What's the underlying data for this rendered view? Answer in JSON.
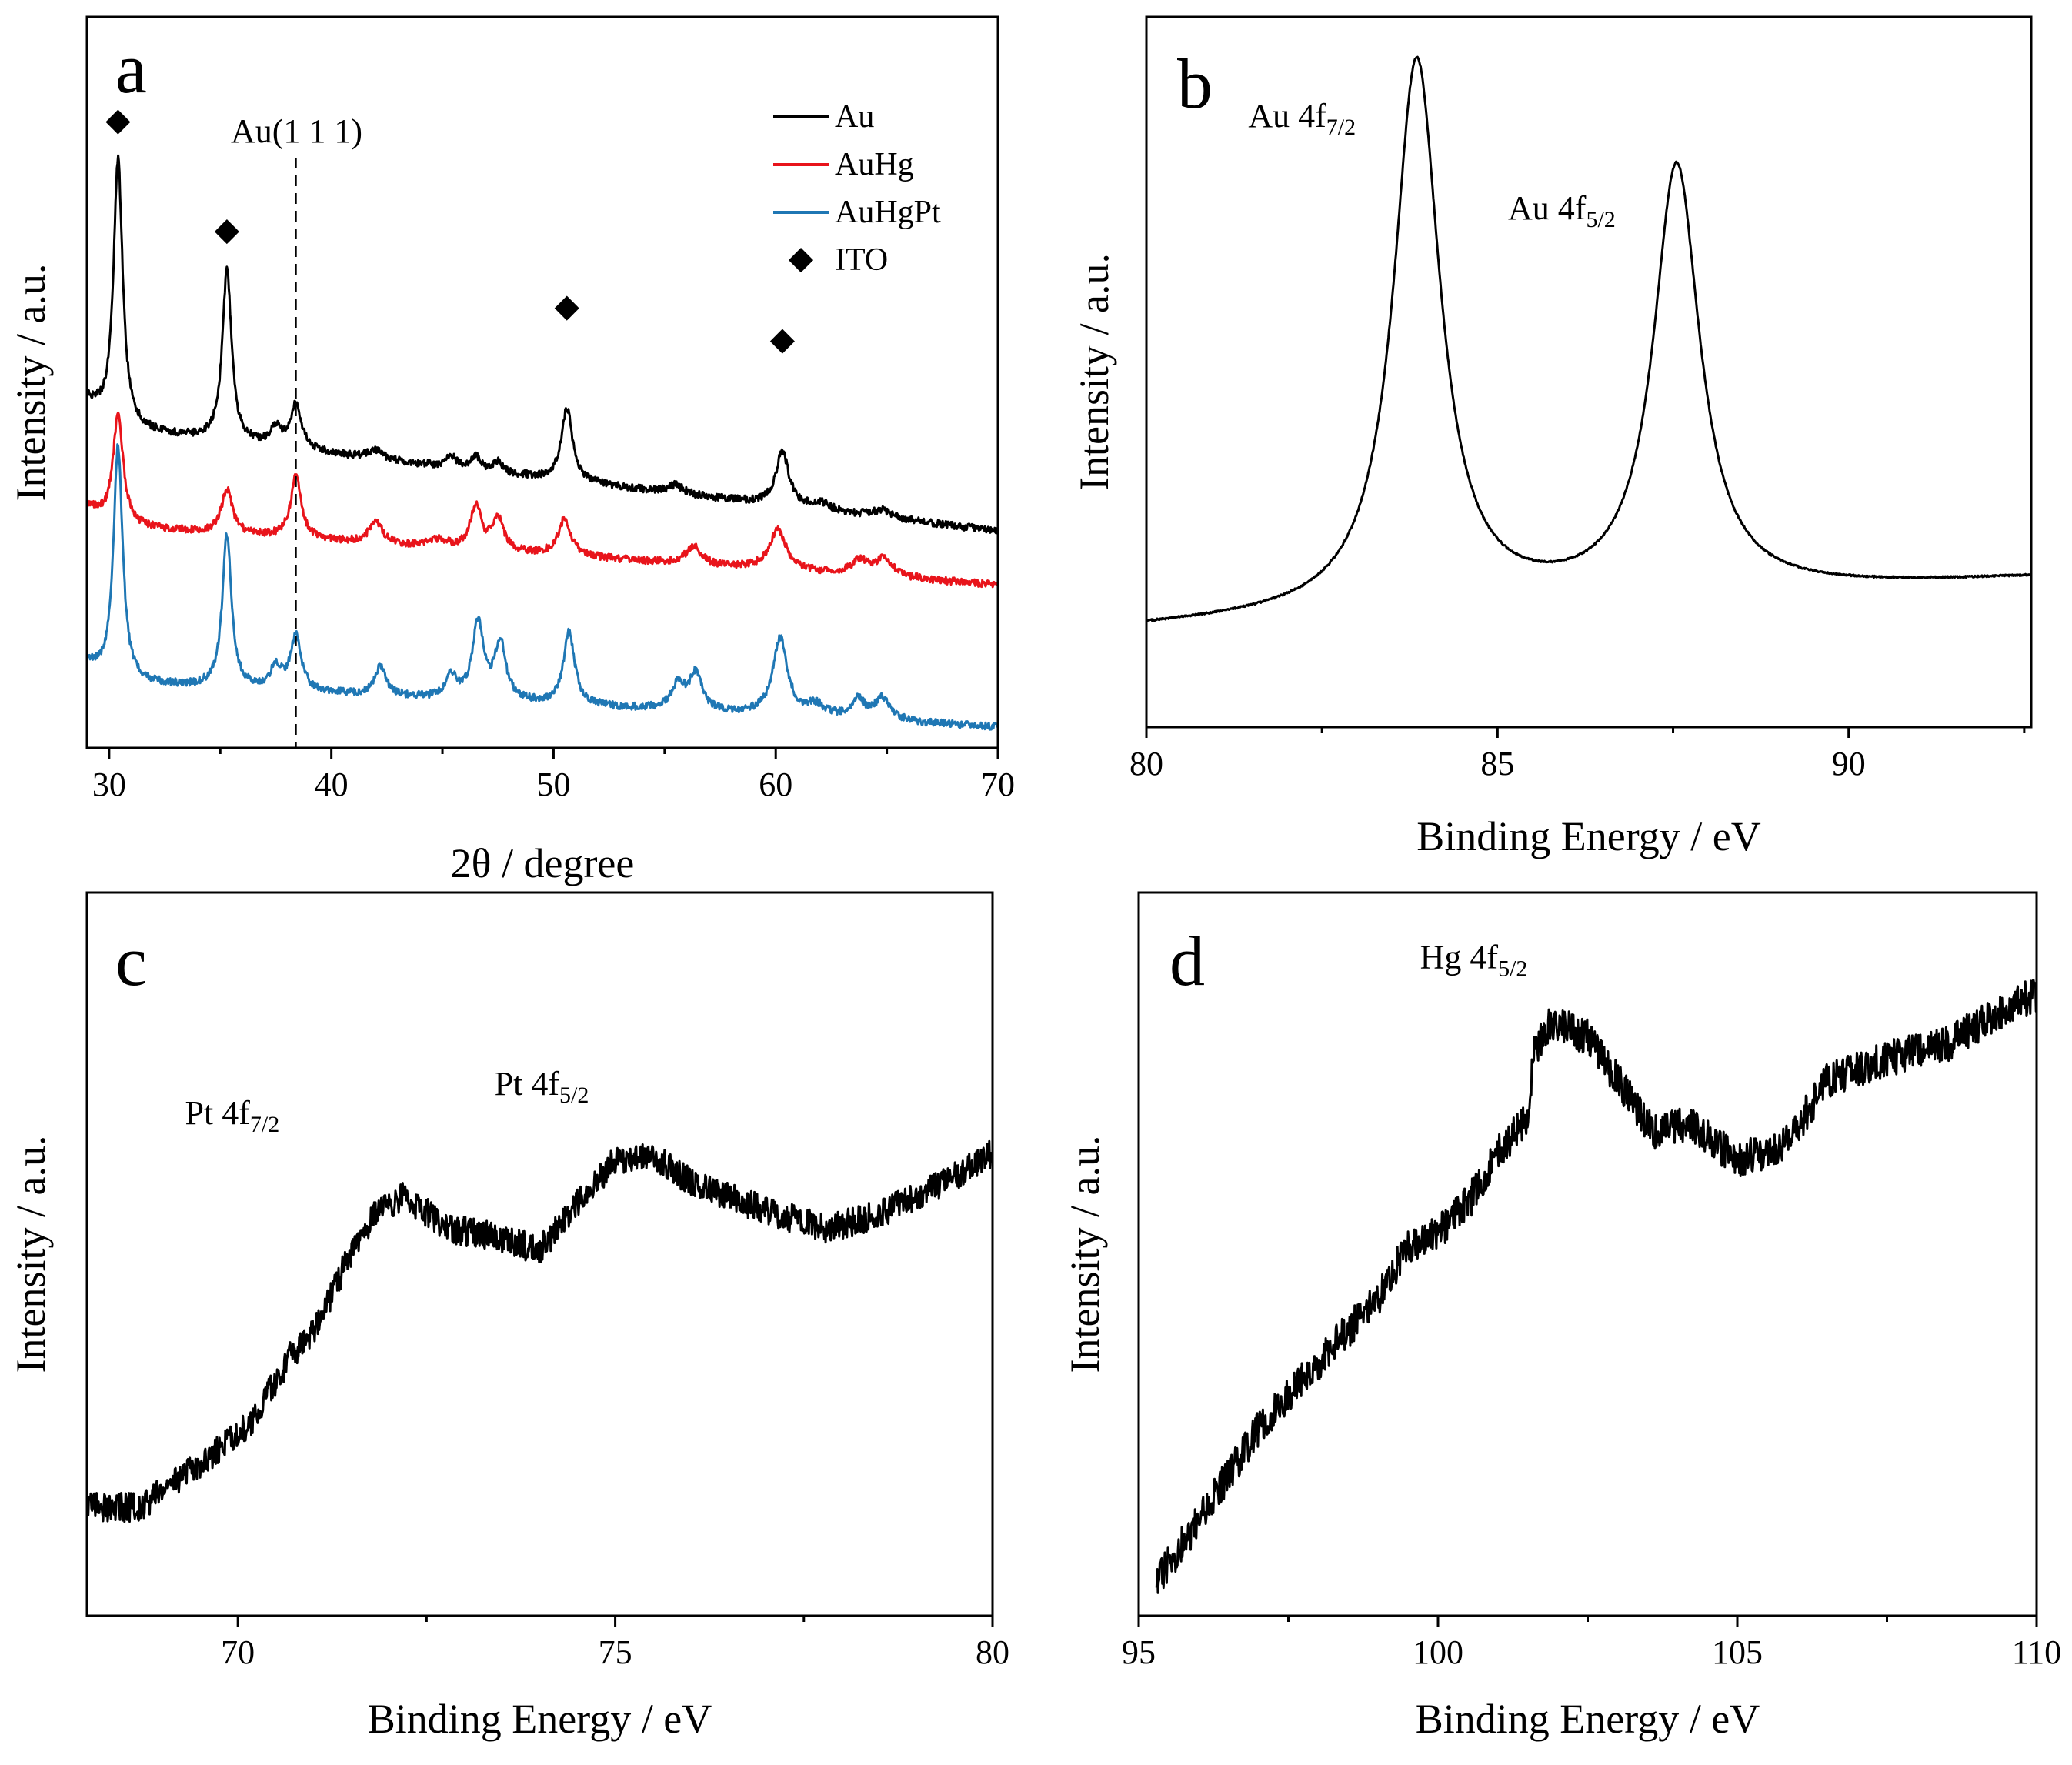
{
  "chart_data": [
    {
      "id": "a",
      "type": "line",
      "panel_letter": "a",
      "xlabel": "2θ / degree",
      "ylabel": "Intensity / a.u.",
      "xlim": [
        29,
        70
      ],
      "ylim": [
        0,
        10
      ],
      "x_ticks": [
        30,
        40,
        50,
        60,
        70
      ],
      "y_ticks_labeled": false,
      "reference_line": {
        "x": 38.4,
        "label": "Au(1 1 1)",
        "style": "dashed"
      },
      "markers": {
        "symbol": "◆",
        "name": "ITO",
        "points": [
          {
            "x": 30.4,
            "y": 8.45
          },
          {
            "x": 35.3,
            "y": 6.95
          },
          {
            "x": 50.6,
            "y": 5.9
          },
          {
            "x": 60.3,
            "y": 5.45
          }
        ]
      },
      "legend": [
        {
          "label": "Au",
          "color": "#000000"
        },
        {
          "label": "AuHg",
          "color": "#e8141b"
        },
        {
          "label": "AuHgPt",
          "color": "#1f77b4"
        },
        {
          "label": "ITO",
          "symbol": "◆"
        }
      ],
      "series": [
        {
          "name": "Au",
          "color": "#000000",
          "baseline": 4.4,
          "slope": -0.035,
          "noise": 0.05,
          "start_rise": 0.35,
          "peaks": [
            {
              "x": 30.4,
              "height": 3.7,
              "width": 0.25
            },
            {
              "x": 35.3,
              "height": 2.35,
              "width": 0.25
            },
            {
              "x": 37.5,
              "height": 0.25,
              "width": 0.3
            },
            {
              "x": 38.4,
              "height": 0.6,
              "width": 0.3
            },
            {
              "x": 42.0,
              "height": 0.12,
              "width": 0.4
            },
            {
              "x": 45.4,
              "height": 0.15,
              "width": 0.3
            },
            {
              "x": 46.5,
              "height": 0.2,
              "width": 0.25
            },
            {
              "x": 47.5,
              "height": 0.15,
              "width": 0.25
            },
            {
              "x": 50.6,
              "height": 1.0,
              "width": 0.3
            },
            {
              "x": 55.5,
              "height": 0.12,
              "width": 0.4
            },
            {
              "x": 60.3,
              "height": 0.75,
              "width": 0.35
            },
            {
              "x": 62.0,
              "height": 0.1,
              "width": 0.5
            },
            {
              "x": 64.8,
              "height": 0.1,
              "width": 0.5
            }
          ]
        },
        {
          "name": "AuHg",
          "color": "#e8141b",
          "baseline": 3.05,
          "slope": -0.02,
          "noise": 0.05,
          "start_rise": 0.25,
          "peaks": [
            {
              "x": 30.4,
              "height": 1.55,
              "width": 0.28
            },
            {
              "x": 35.3,
              "height": 0.6,
              "width": 0.3
            },
            {
              "x": 38.4,
              "height": 0.85,
              "width": 0.28
            },
            {
              "x": 42.0,
              "height": 0.3,
              "width": 0.35
            },
            {
              "x": 44.8,
              "height": 0.1,
              "width": 0.5
            },
            {
              "x": 46.5,
              "height": 0.6,
              "width": 0.3
            },
            {
              "x": 47.5,
              "height": 0.45,
              "width": 0.3
            },
            {
              "x": 50.5,
              "height": 0.5,
              "width": 0.35
            },
            {
              "x": 56.3,
              "height": 0.25,
              "width": 0.4
            },
            {
              "x": 60.1,
              "height": 0.55,
              "width": 0.45
            },
            {
              "x": 63.8,
              "height": 0.2,
              "width": 0.45
            },
            {
              "x": 64.9,
              "height": 0.25,
              "width": 0.45
            }
          ]
        },
        {
          "name": "AuHgPt",
          "color": "#1f77b4",
          "baseline": 0.9,
          "slope": -0.015,
          "noise": 0.05,
          "start_rise": 0.25,
          "peaks": [
            {
              "x": 30.4,
              "height": 3.25,
              "width": 0.25
            },
            {
              "x": 35.3,
              "height": 2.1,
              "width": 0.25
            },
            {
              "x": 37.5,
              "height": 0.3,
              "width": 0.3
            },
            {
              "x": 38.4,
              "height": 0.75,
              "width": 0.3
            },
            {
              "x": 42.2,
              "height": 0.4,
              "width": 0.3
            },
            {
              "x": 45.4,
              "height": 0.3,
              "width": 0.3
            },
            {
              "x": 46.6,
              "height": 1.05,
              "width": 0.3
            },
            {
              "x": 47.6,
              "height": 0.8,
              "width": 0.3
            },
            {
              "x": 50.7,
              "height": 1.0,
              "width": 0.3
            },
            {
              "x": 55.6,
              "height": 0.35,
              "width": 0.35
            },
            {
              "x": 56.4,
              "height": 0.5,
              "width": 0.35
            },
            {
              "x": 60.2,
              "height": 1.05,
              "width": 0.4
            },
            {
              "x": 61.8,
              "height": 0.15,
              "width": 0.5
            },
            {
              "x": 63.7,
              "height": 0.25,
              "width": 0.4
            },
            {
              "x": 64.8,
              "height": 0.3,
              "width": 0.4
            }
          ]
        }
      ]
    },
    {
      "id": "b",
      "type": "line",
      "panel_letter": "b",
      "xlabel": "Binding Energy / eV",
      "ylabel": "Intensity / a.u.",
      "xlim": [
        80,
        92.6
      ],
      "ylim": [
        0,
        10
      ],
      "x_ticks": [
        80,
        85,
        90
      ],
      "y_ticks_labeled": false,
      "annotations": [
        {
          "text": "Au 4f",
          "sub": "7/2",
          "x": 81.45,
          "y": 8.45
        },
        {
          "text": "Au 4f",
          "sub": "5/2",
          "x": 85.15,
          "y": 7.15
        }
      ],
      "series": [
        {
          "name": "Au 4f",
          "color": "#000000",
          "baseline": 1.4,
          "slope": 0.055,
          "noise": 0.012,
          "peaks": [
            {
              "x": 83.85,
              "height": 7.75,
              "width": 0.4
            },
            {
              "x": 87.55,
              "height": 6.05,
              "width": 0.4
            }
          ]
        }
      ]
    },
    {
      "id": "c",
      "type": "line",
      "panel_letter": "c",
      "xlabel": "Binding Energy / eV",
      "ylabel": "Intensity / a.u.",
      "xlim": [
        68,
        80
      ],
      "ylim": [
        0,
        10
      ],
      "x_ticks": [
        70,
        75,
        80
      ],
      "y_ticks_labeled": false,
      "annotations": [
        {
          "text": "Pt 4f",
          "sub": "7/2",
          "x": 69.3,
          "y": 6.8
        },
        {
          "text": "Pt 4f",
          "sub": "5/2",
          "x": 73.4,
          "y": 7.2
        }
      ],
      "series": [
        {
          "name": "Pt 4f",
          "color": "#000000",
          "noise": 0.2,
          "points": [
            [
              68,
              1.5
            ],
            [
              68.7,
              1.5
            ],
            [
              69.5,
              2.1
            ],
            [
              70.2,
              2.7
            ],
            [
              70.7,
              3.6
            ],
            [
              71.0,
              3.9
            ],
            [
              71.4,
              4.8
            ],
            [
              71.8,
              5.55
            ],
            [
              72.2,
              5.8
            ],
            [
              72.8,
              5.35
            ],
            [
              73.4,
              5.25
            ],
            [
              74.0,
              5.05
            ],
            [
              74.5,
              5.7
            ],
            [
              75.0,
              6.3
            ],
            [
              75.5,
              6.35
            ],
            [
              76.0,
              6.0
            ],
            [
              77.0,
              5.6
            ],
            [
              77.8,
              5.35
            ],
            [
              78.5,
              5.55
            ],
            [
              79.3,
              5.95
            ],
            [
              80,
              6.4
            ]
          ]
        }
      ]
    },
    {
      "id": "d",
      "type": "line",
      "panel_letter": "d",
      "xlabel": "Binding Energy / eV",
      "ylabel": "Intensity / a.u.",
      "xlim": [
        95,
        110
      ],
      "ylim": [
        0,
        10
      ],
      "x_ticks": [
        95,
        100,
        105,
        110
      ],
      "y_ticks_labeled": false,
      "annotations": [
        {
          "text": "Hg 4f",
          "sub": "5/2",
          "x": 99.7,
          "y": 8.95
        }
      ],
      "series": [
        {
          "name": "Hg 4f",
          "color": "#000000",
          "noise": 0.25,
          "points": [
            [
              95.3,
              0.5
            ],
            [
              96.0,
              1.3
            ],
            [
              97.0,
              2.6
            ],
            [
              98.0,
              3.5
            ],
            [
              99.0,
              4.4
            ],
            [
              99.5,
              5.1
            ],
            [
              100.0,
              5.3
            ],
            [
              100.5,
              5.7
            ],
            [
              101.0,
              6.4
            ],
            [
              101.5,
              6.9
            ],
            [
              101.6,
              7.8
            ],
            [
              101.9,
              8.2
            ],
            [
              102.5,
              8.0
            ],
            [
              103.0,
              7.4
            ],
            [
              103.6,
              6.7
            ],
            [
              104.2,
              6.8
            ],
            [
              105.0,
              6.3
            ],
            [
              105.8,
              6.5
            ],
            [
              106.5,
              7.4
            ],
            [
              107.5,
              7.7
            ],
            [
              108.5,
              7.9
            ],
            [
              109.5,
              8.4
            ],
            [
              110,
              8.6
            ]
          ]
        }
      ]
    }
  ]
}
